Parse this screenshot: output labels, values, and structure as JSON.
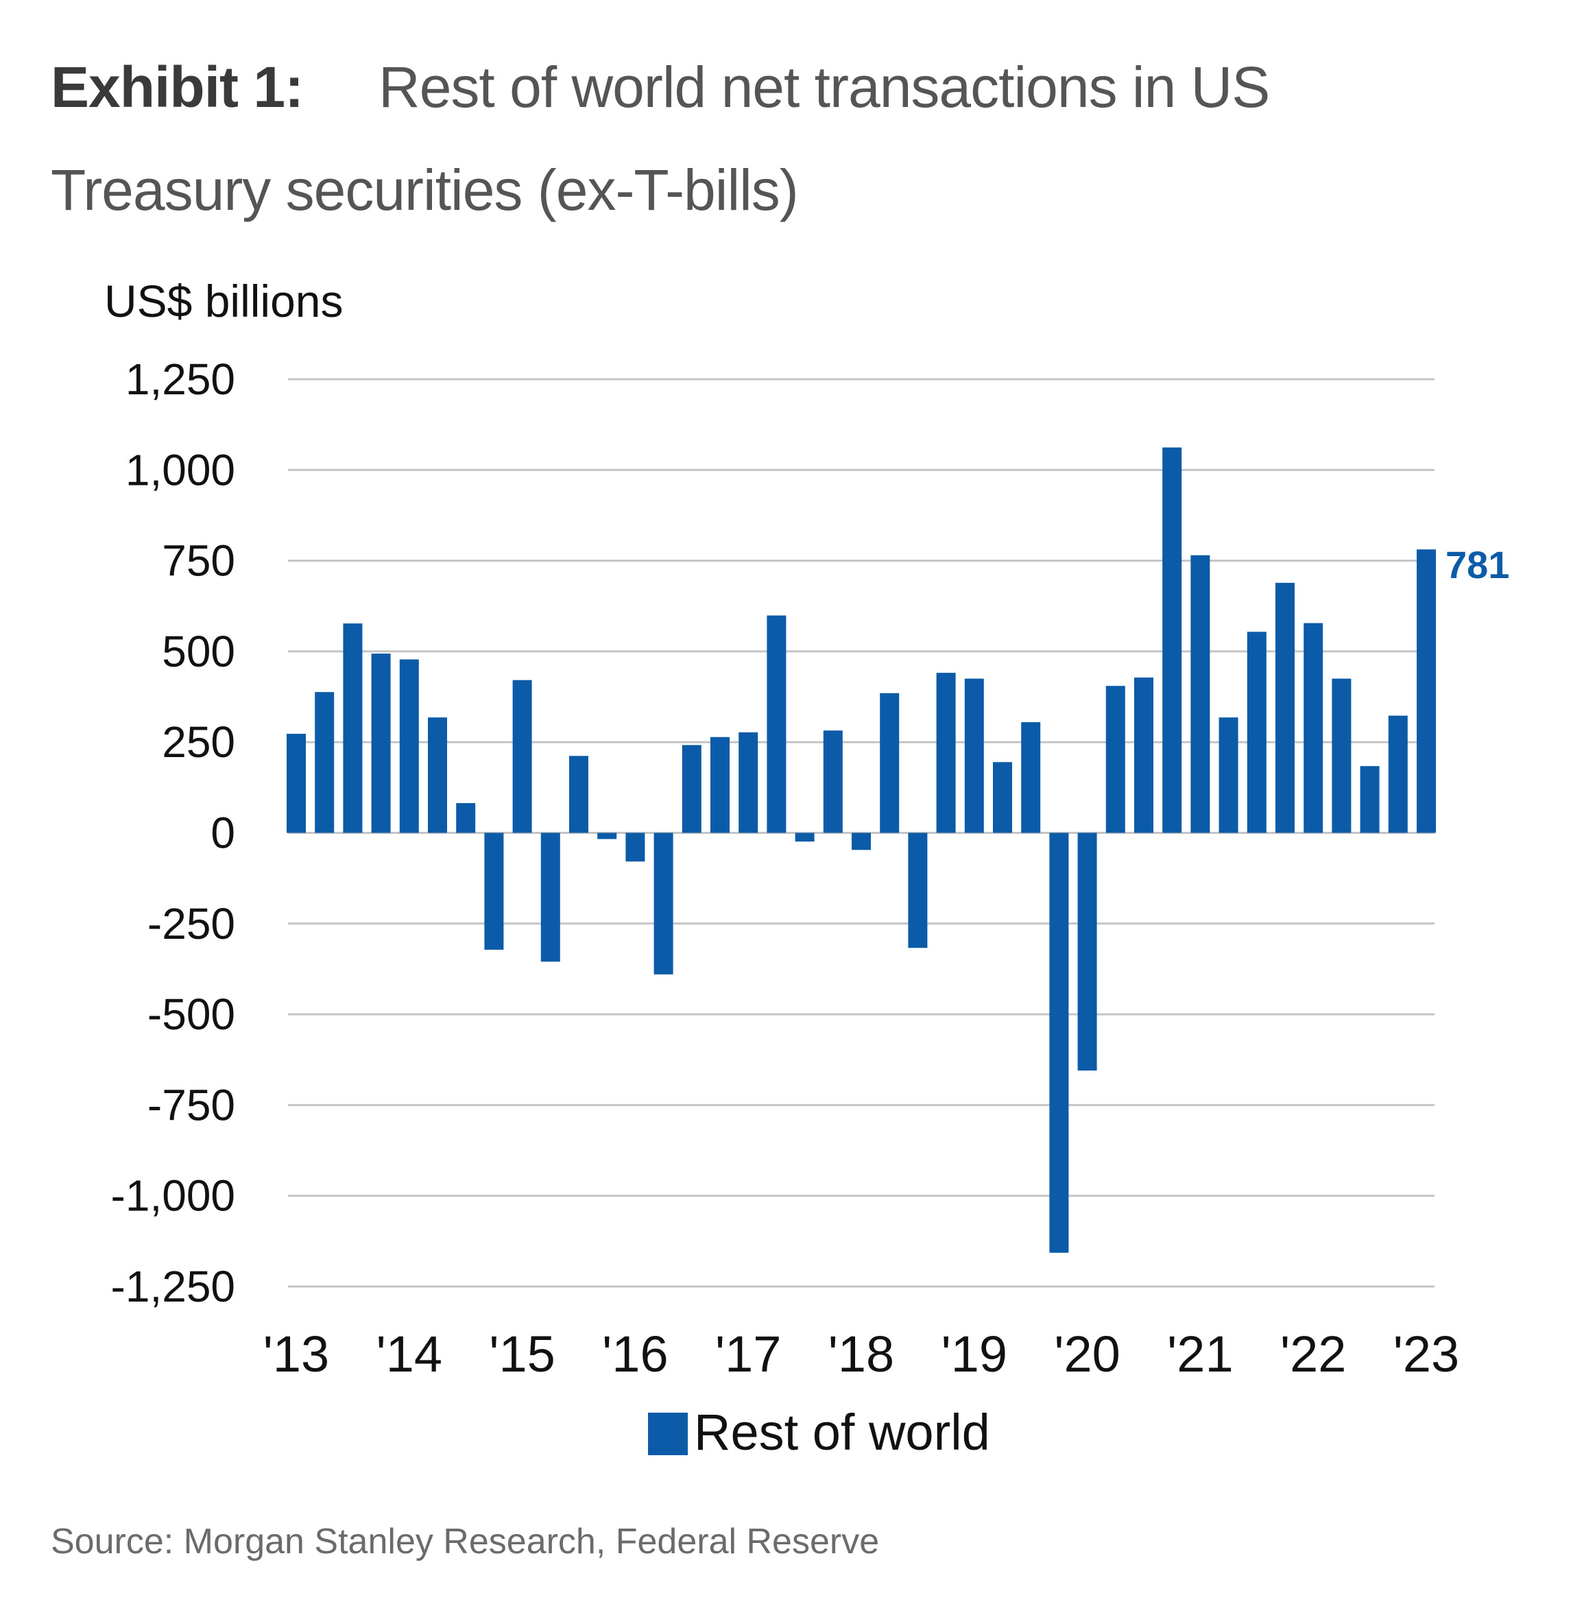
{
  "header": {
    "exhibit": "Exhibit 1:",
    "title_line1": "Rest of world net transactions in US",
    "title_line2": "Treasury securities (ex-T-bills)"
  },
  "chart_data": {
    "type": "bar",
    "title": "Rest of world net transactions in US Treasury securities (ex-T-bills)",
    "ylabel": "US$ billions",
    "xlabel": "",
    "ylim": [
      -1250,
      1250
    ],
    "yticks": [
      1250,
      1000,
      750,
      500,
      250,
      0,
      -250,
      -500,
      -750,
      -1000,
      -1250
    ],
    "ytick_labels": [
      "1,250",
      "1,000",
      "750",
      "500",
      "250",
      "0",
      "-250",
      "-500",
      "-750",
      "-1,000",
      "-1,250"
    ],
    "grid": true,
    "xtick_labels": [
      "'13",
      "'14",
      "'15",
      "'16",
      "'17",
      "'18",
      "'19",
      "'20",
      "'21",
      "'22",
      "'23"
    ],
    "xtick_every": 4,
    "categories": [
      "2013Q1",
      "2013Q2",
      "2013Q3",
      "2013Q4",
      "2014Q1",
      "2014Q2",
      "2014Q3",
      "2014Q4",
      "2015Q1",
      "2015Q2",
      "2015Q3",
      "2015Q4",
      "2016Q1",
      "2016Q2",
      "2016Q3",
      "2016Q4",
      "2017Q1",
      "2017Q2",
      "2017Q3",
      "2017Q4",
      "2018Q1",
      "2018Q2",
      "2018Q3",
      "2018Q4",
      "2019Q1",
      "2019Q2",
      "2019Q3",
      "2019Q4",
      "2020Q1",
      "2020Q2",
      "2020Q3",
      "2020Q4",
      "2021Q1",
      "2021Q2",
      "2021Q3",
      "2021Q4",
      "2022Q1",
      "2022Q2",
      "2022Q3",
      "2022Q4",
      "2023Q1"
    ],
    "series": [
      {
        "name": "Rest of world",
        "color": "#0b5ba8",
        "values": [
          273,
          388,
          577,
          494,
          478,
          318,
          82,
          -322,
          421,
          -355,
          212,
          -17,
          -79,
          -390,
          242,
          264,
          277,
          599,
          -24,
          282,
          -47,
          385,
          -317,
          441,
          425,
          195,
          305,
          -1157,
          -655,
          405,
          428,
          1062,
          765,
          318,
          554,
          689,
          578,
          425,
          184,
          323,
          781
        ]
      }
    ],
    "annotations": [
      {
        "index": 40,
        "text": "781",
        "color": "#0b5ba8"
      }
    ],
    "legend": {
      "position": "bottom-center",
      "entries": [
        "Rest of world"
      ]
    }
  },
  "footer": {
    "source": "Source: Morgan Stanley Research, Federal Reserve"
  }
}
